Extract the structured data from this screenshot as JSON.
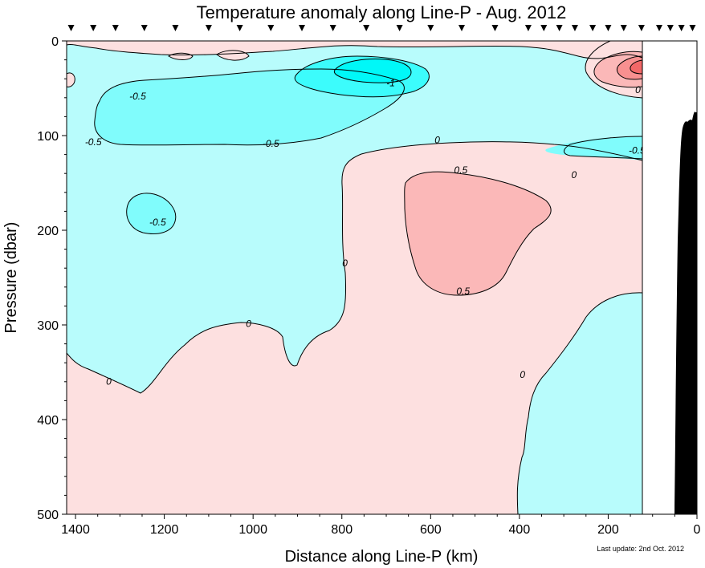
{
  "chart_data": {
    "type": "heatmap",
    "title": "Temperature anomaly along Line-P - Aug. 2012",
    "xlabel": "Distance along Line-P (km)",
    "ylabel": "Pressure (dbar)",
    "xlim": [
      1420,
      0
    ],
    "ylim": [
      500,
      0
    ],
    "x_ticks": [
      1400,
      1200,
      1000,
      800,
      600,
      400,
      200,
      0
    ],
    "y_ticks": [
      0,
      100,
      200,
      300,
      400,
      500
    ],
    "data_end_km": 125,
    "station_km": [
      1410,
      1360,
      1310,
      1245,
      1175,
      1100,
      1030,
      960,
      890,
      820,
      745,
      670,
      600,
      530,
      455,
      380,
      345,
      310,
      275,
      235,
      200,
      165,
      125,
      85,
      60,
      35,
      10
    ],
    "contour_levels": [
      -1.5,
      -1,
      -0.5,
      0,
      0.5,
      1,
      1.5
    ],
    "colors": {
      "neg_weak": "#b8fcfc",
      "neg_mid": "#80fcfc",
      "neg_strong": "#3cfcfc",
      "neg_max": "#00f8f8",
      "pos_weak": "#fde0e0",
      "pos_mid": "#fbb8b8",
      "pos_strong": "#f89090",
      "pos_max": "#f26868",
      "topography": "#000000"
    },
    "contour_labels": [
      {
        "text": "-0.5",
        "x": 1260,
        "y": 62
      },
      {
        "text": "-0.5",
        "x": 1360,
        "y": 110
      },
      {
        "text": "-0.5",
        "x": 960,
        "y": 112
      },
      {
        "text": "-0.5",
        "x": 1215,
        "y": 195
      },
      {
        "text": "-1",
        "x": 690,
        "y": 48
      },
      {
        "text": "0",
        "x": 585,
        "y": 108
      },
      {
        "text": "0",
        "x": 277,
        "y": 145
      },
      {
        "text": "0",
        "x": 1010,
        "y": 302
      },
      {
        "text": "0",
        "x": 793,
        "y": 238
      },
      {
        "text": "0",
        "x": 1325,
        "y": 363
      },
      {
        "text": "0",
        "x": 393,
        "y": 356
      },
      {
        "text": "0",
        "x": 133,
        "y": 55
      },
      {
        "text": "0.5",
        "x": 532,
        "y": 140
      },
      {
        "text": "0.5",
        "x": 527,
        "y": 268
      },
      {
        "text": "-0.5",
        "x": 135,
        "y": 119
      }
    ],
    "note": "Last update: 2nd Oct. 2012"
  }
}
